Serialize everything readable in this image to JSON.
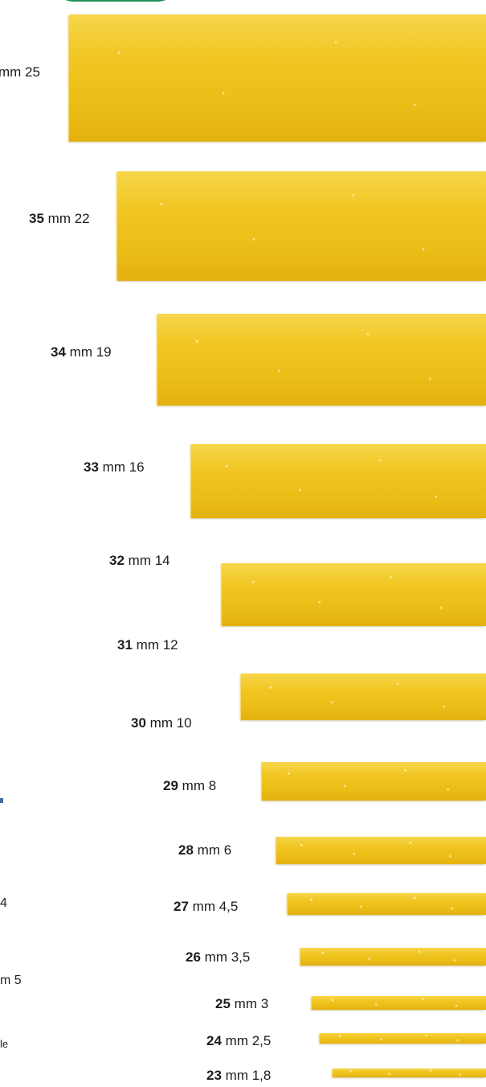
{
  "items": [
    {
      "num": "",
      "mm": "mm 25"
    },
    {
      "num": "35",
      "mm": "mm 22"
    },
    {
      "num": "34",
      "mm": "mm 19"
    },
    {
      "num": "33",
      "mm": "mm 16"
    },
    {
      "num": "32",
      "mm": "mm 14"
    },
    {
      "num": "31",
      "mm": "mm 12"
    },
    {
      "num": "30",
      "mm": "mm 10"
    },
    {
      "num": "29",
      "mm": "mm 8"
    },
    {
      "num": "28",
      "mm": "mm 6"
    },
    {
      "num": "27",
      "mm": "mm 4,5"
    },
    {
      "num": "26",
      "mm": "mm 3,5"
    },
    {
      "num": "25",
      "mm": "mm 3"
    },
    {
      "num": "24",
      "mm": "mm 2,5"
    },
    {
      "num": "23",
      "mm": "mm 1,8"
    }
  ],
  "left_fragments": {
    "frag1": "4",
    "frag2": "m 5",
    "frag3": "le"
  },
  "colors": {
    "pasta": "#f1c623",
    "accent_green": "#1f8f5a"
  }
}
